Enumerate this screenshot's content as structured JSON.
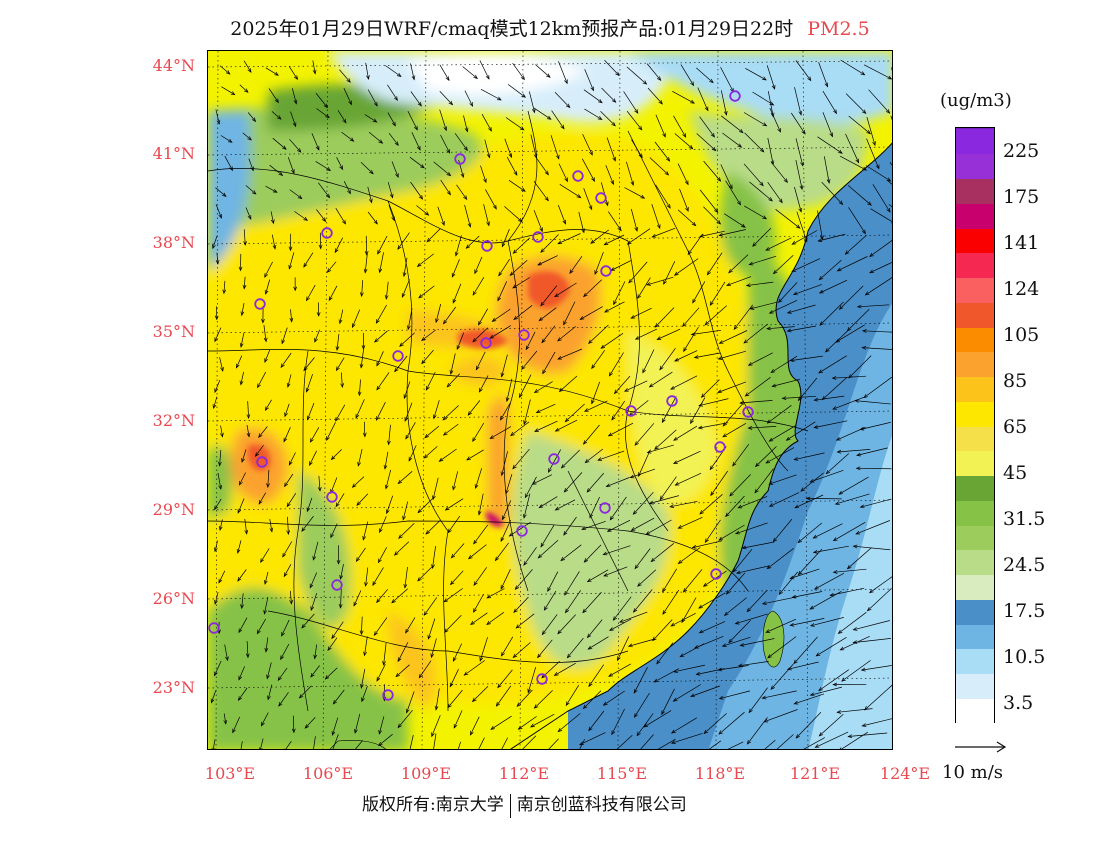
{
  "title": {
    "main": "2025年01月29日WRF/cmaq模式12km预报产品:01月29日22时",
    "species": "PM2.5",
    "species_color": "#e8484f"
  },
  "map": {
    "lat_ticks": [
      "44°N",
      "41°N",
      "38°N",
      "35°N",
      "32°N",
      "29°N",
      "26°N",
      "23°N"
    ],
    "lon_ticks": [
      "103°E",
      "106°E",
      "109°E",
      "112°E",
      "115°E",
      "118°E",
      "121°E",
      "124°E"
    ],
    "label_color": "#e8484f",
    "station_marker": "purple-circle-icon"
  },
  "legend": {
    "units": "(ug/m3)",
    "colors": [
      "#ffffff",
      "#d7eefa",
      "#a9dcf5",
      "#6fb5e3",
      "#4a8fc8",
      "#d9ecc0",
      "#b9dc88",
      "#9ccc5c",
      "#86c246",
      "#68a534",
      "#f2f254",
      "#f6e04a",
      "#fde600",
      "#fcc41a",
      "#fba22e",
      "#fb8c00",
      "#f0582b",
      "#fb6060",
      "#f42850",
      "#fb0000",
      "#c8006e",
      "#a83060",
      "#9830d8",
      "#8a28e0"
    ],
    "labels": [
      "3.5",
      "10.5",
      "17.5",
      "24.5",
      "31.5",
      "45",
      "65",
      "85",
      "105",
      "124",
      "141",
      "175",
      "225"
    ]
  },
  "wind": {
    "reference_label": "10 m/s",
    "arrow_icon": "wind-reference-arrow-icon"
  },
  "footer": {
    "copyright_left": "版权所有:南京大学",
    "copyright_right": "南京创蓝科技有限公司"
  }
}
